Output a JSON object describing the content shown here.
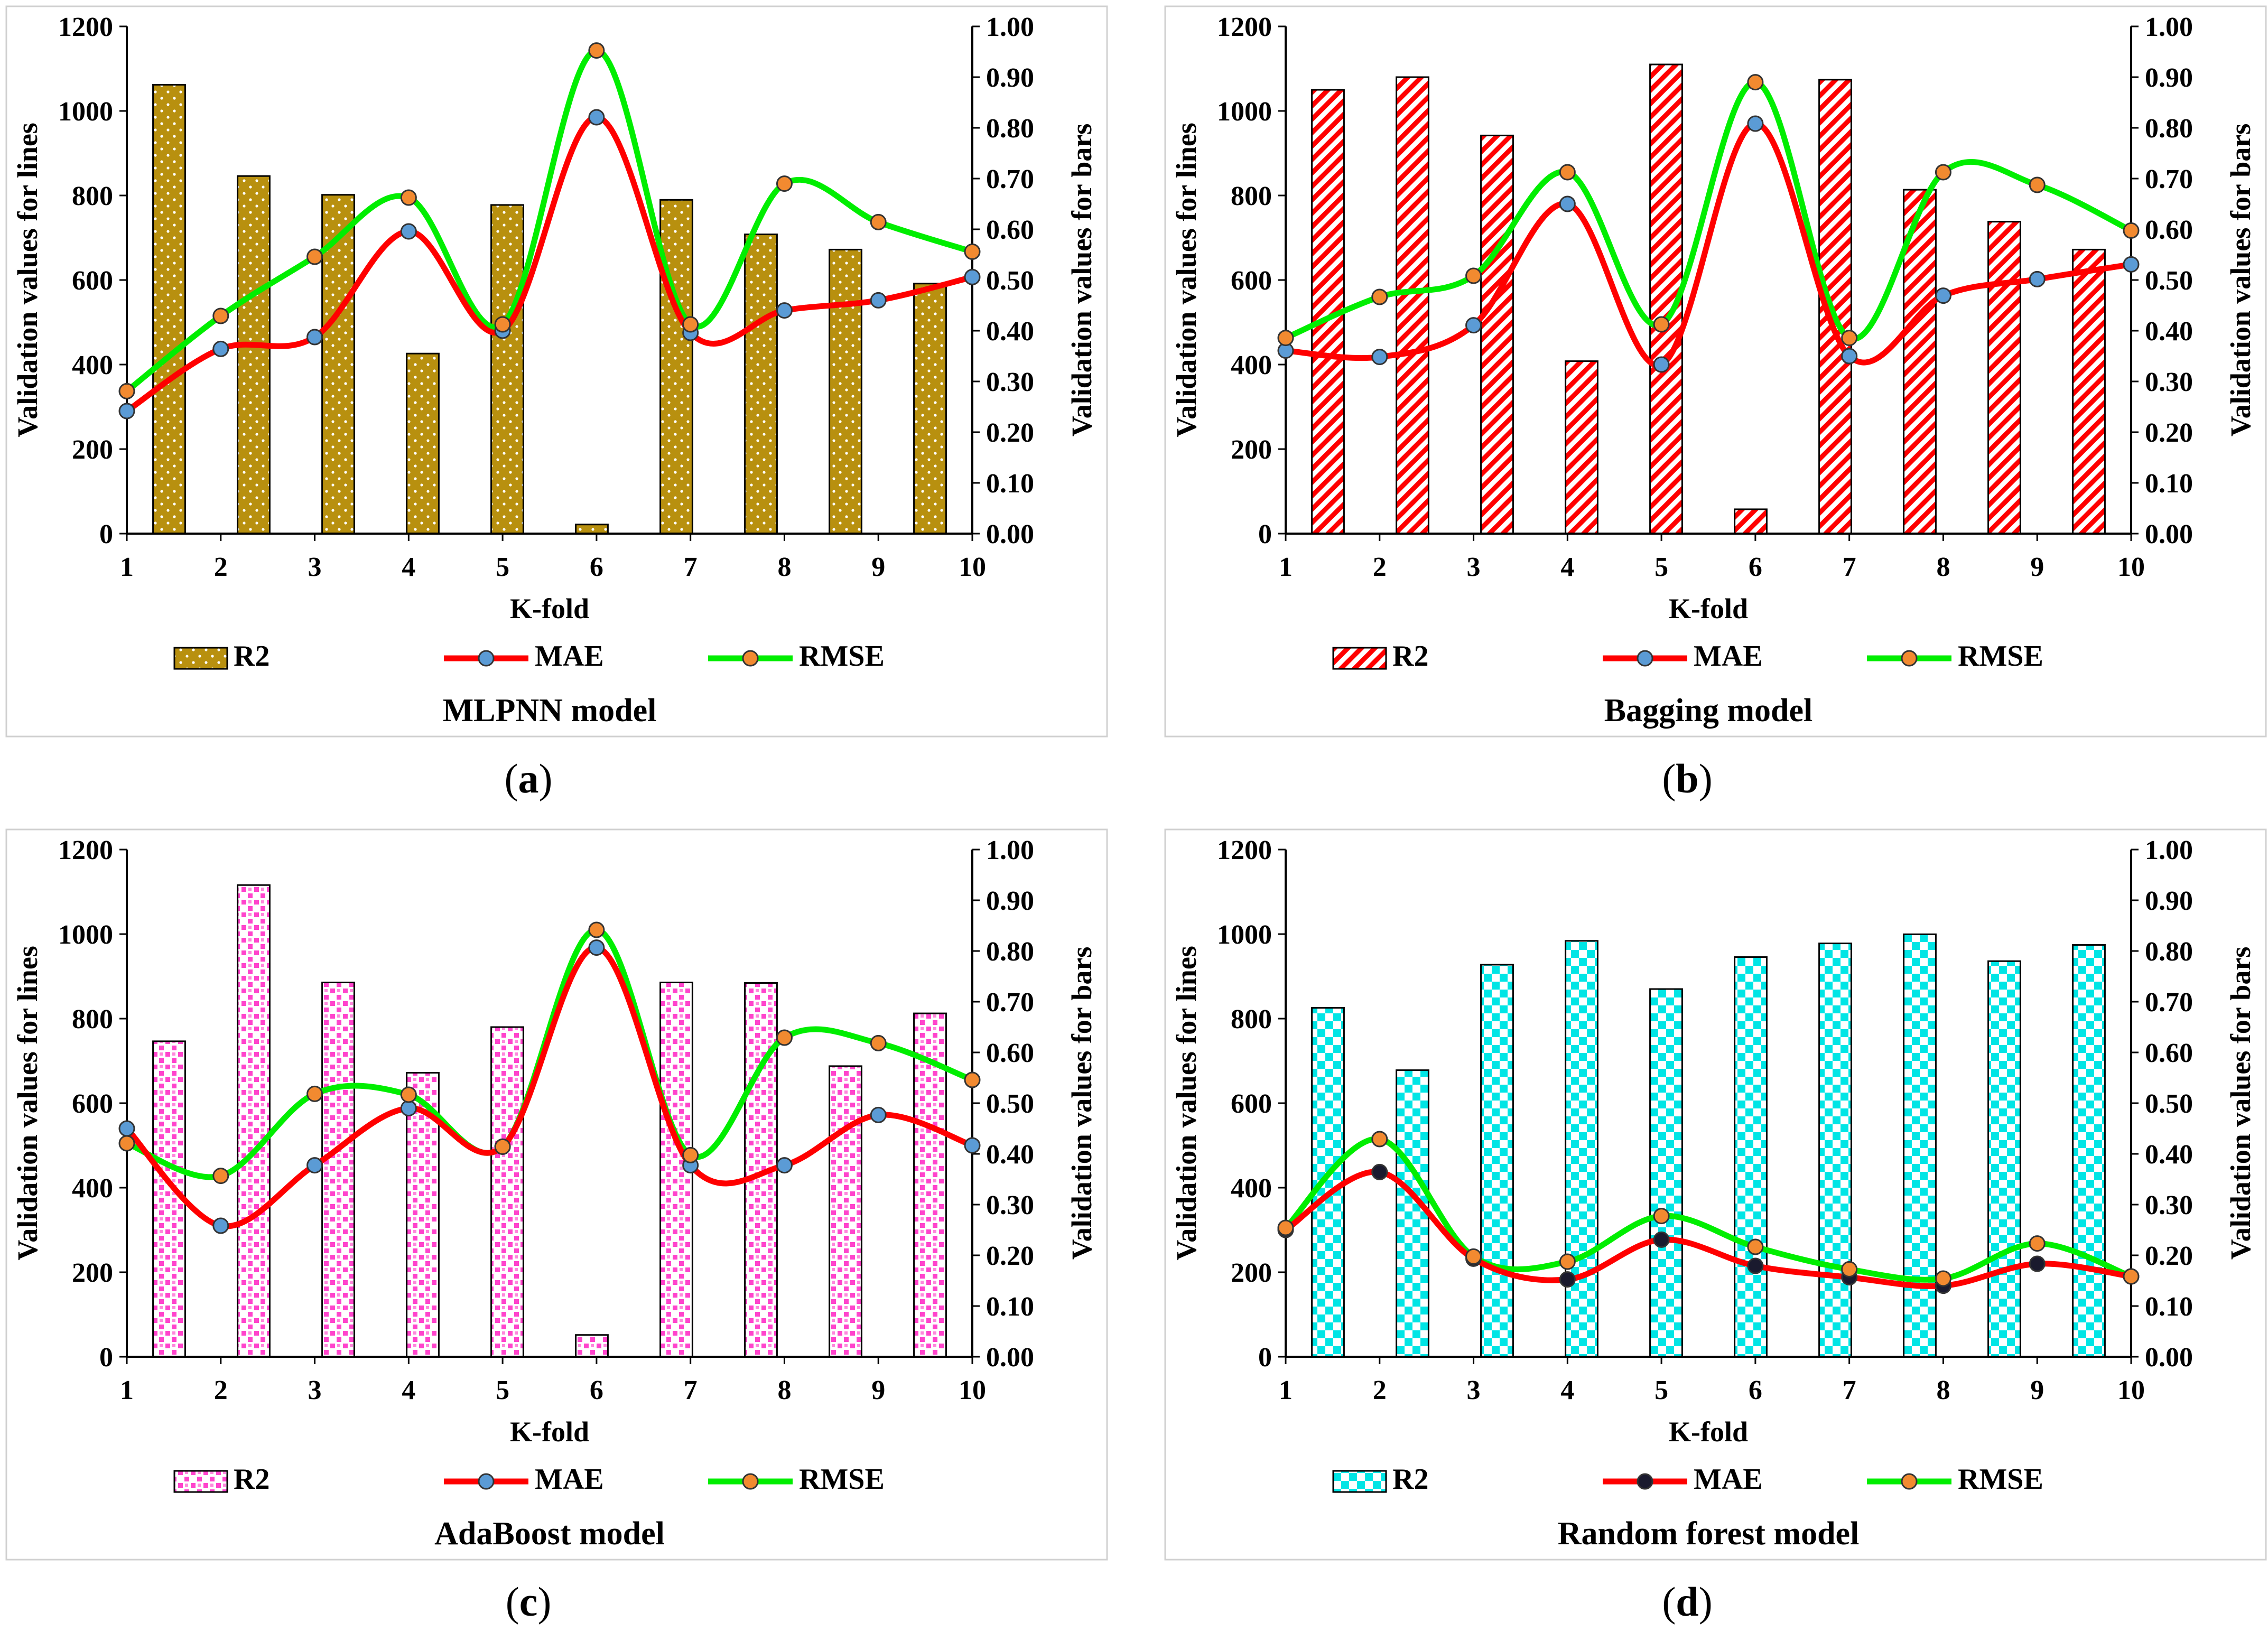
{
  "figure": {
    "panels": [
      {
        "caption_letter": "a",
        "bar_color": "#b8900f",
        "bar_pattern": "dots",
        "mae_marker": "#5b9bd5",
        "chart_data": {
          "type": "bar+line",
          "title": "MLPNN model",
          "xlabel": "K-fold",
          "ylabel_left": "Validation values for lines",
          "ylabel_right": "Validation values for bars",
          "categories": [
            "1",
            "2",
            "3",
            "4",
            "5",
            "6",
            "7",
            "8",
            "9",
            "10"
          ],
          "yticks_left": [
            "0",
            "200",
            "400",
            "600",
            "800",
            "1000",
            "1200"
          ],
          "yticks_right": [
            "0.00",
            "0.10",
            "0.20",
            "0.30",
            "0.40",
            "0.50",
            "0.60",
            "0.70",
            "0.80",
            "0.90",
            "1.00"
          ],
          "ylim_left": [
            0,
            1200
          ],
          "ylim_right": [
            0,
            1.0
          ],
          "legend": [
            "R2",
            "MAE",
            "RMSE"
          ],
          "series": [
            {
              "name": "R2",
              "kind": "bar",
              "axis": "right",
              "values": [
                0.885,
                0.705,
                0.668,
                0.355,
                0.648,
                0.018,
                0.658,
                0.59,
                0.56,
                0.493
              ]
            },
            {
              "name": "MAE",
              "kind": "line",
              "axis": "left",
              "color": "#ff0000",
              "values": [
                290,
                437,
                465,
                715,
                480,
                985,
                475,
                528,
                552,
                607
              ]
            },
            {
              "name": "RMSE",
              "kind": "line",
              "axis": "left",
              "color": "#00ee00",
              "values": [
                337,
                515,
                655,
                795,
                495,
                1143,
                495,
                828,
                737,
                667
              ]
            }
          ]
        }
      },
      {
        "caption_letter": "b",
        "bar_color": "#ff0000",
        "bar_pattern": "diagonal",
        "mae_marker": "#5b9bd5",
        "chart_data": {
          "type": "bar+line",
          "title": "Bagging model",
          "xlabel": "K-fold",
          "ylabel_left": "Validation values for lines",
          "ylabel_right": "Validation values for bars",
          "categories": [
            "1",
            "2",
            "3",
            "4",
            "5",
            "6",
            "7",
            "8",
            "9",
            "10"
          ],
          "yticks_left": [
            "0",
            "200",
            "400",
            "600",
            "800",
            "1000",
            "1200"
          ],
          "yticks_right": [
            "0.00",
            "0.10",
            "0.20",
            "0.30",
            "0.40",
            "0.50",
            "0.60",
            "0.70",
            "0.80",
            "0.90",
            "1.00"
          ],
          "ylim_left": [
            0,
            1200
          ],
          "ylim_right": [
            0,
            1.0
          ],
          "legend": [
            "R2",
            "MAE",
            "RMSE"
          ],
          "series": [
            {
              "name": "R2",
              "kind": "bar",
              "axis": "right",
              "values": [
                0.875,
                0.9,
                0.785,
                0.34,
                0.925,
                0.048,
                0.895,
                0.678,
                0.615,
                0.56
              ]
            },
            {
              "name": "MAE",
              "kind": "line",
              "axis": "left",
              "color": "#ff0000",
              "values": [
                433,
                418,
                493,
                780,
                400,
                970,
                420,
                563,
                602,
                637
              ]
            },
            {
              "name": "RMSE",
              "kind": "line",
              "axis": "left",
              "color": "#00ee00",
              "values": [
                463,
                560,
                610,
                855,
                495,
                1068,
                463,
                855,
                825,
                717
              ]
            }
          ]
        }
      },
      {
        "caption_letter": "c",
        "bar_color": "#ff44cc",
        "bar_pattern": "checker",
        "mae_marker": "#5b9bd5",
        "chart_data": {
          "type": "bar+line",
          "title": "AdaBoost model",
          "xlabel": "K-fold",
          "ylabel_left": "Validation values for lines",
          "ylabel_right": "Validation values for bars",
          "categories": [
            "1",
            "2",
            "3",
            "4",
            "5",
            "6",
            "7",
            "8",
            "9",
            "10"
          ],
          "yticks_left": [
            "0",
            "200",
            "400",
            "600",
            "800",
            "1000",
            "1200"
          ],
          "yticks_right": [
            "0.00",
            "0.10",
            "0.20",
            "0.30",
            "0.40",
            "0.50",
            "0.60",
            "0.70",
            "0.80",
            "0.90",
            "1.00"
          ],
          "ylim_left": [
            0,
            1200
          ],
          "ylim_right": [
            0,
            1.0
          ],
          "legend": [
            "R2",
            "MAE",
            "RMSE"
          ],
          "series": [
            {
              "name": "R2",
              "kind": "bar",
              "axis": "right",
              "values": [
                0.622,
                0.93,
                0.738,
                0.56,
                0.65,
                0.043,
                0.738,
                0.737,
                0.573,
                0.677
              ]
            },
            {
              "name": "MAE",
              "kind": "line",
              "axis": "left",
              "color": "#ff0000",
              "values": [
                540,
                310,
                453,
                588,
                497,
                968,
                453,
                453,
                572,
                500
              ]
            },
            {
              "name": "RMSE",
              "kind": "line",
              "axis": "left",
              "color": "#00ee00",
              "values": [
                505,
                428,
                622,
                620,
                497,
                1010,
                477,
                755,
                742,
                655
              ]
            }
          ]
        }
      },
      {
        "caption_letter": "d",
        "bar_color": "#00e5e5",
        "bar_pattern": "checker",
        "mae_marker": "#1a1a2e",
        "chart_data": {
          "type": "bar+line",
          "title": "Random forest model",
          "xlabel": "K-fold",
          "ylabel_left": "Validation values for lines",
          "ylabel_right": "Validation values for bars",
          "categories": [
            "1",
            "2",
            "3",
            "4",
            "5",
            "6",
            "7",
            "8",
            "9",
            "10"
          ],
          "yticks_left": [
            "0",
            "200",
            "400",
            "600",
            "800",
            "1000",
            "1200"
          ],
          "yticks_right": [
            "0.00",
            "0.10",
            "0.20",
            "0.30",
            "0.40",
            "0.50",
            "0.60",
            "0.70",
            "0.80",
            "0.90",
            "1.00"
          ],
          "ylim_left": [
            0,
            1200
          ],
          "ylim_right": [
            0,
            1.0
          ],
          "legend": [
            "R2",
            "MAE",
            "RMSE"
          ],
          "series": [
            {
              "name": "R2",
              "kind": "bar",
              "axis": "right",
              "values": [
                0.688,
                0.565,
                0.773,
                0.82,
                0.725,
                0.788,
                0.815,
                0.833,
                0.78,
                0.812
              ]
            },
            {
              "name": "MAE",
              "kind": "line",
              "axis": "left",
              "color": "#ff0000",
              "values": [
                300,
                437,
                232,
                183,
                277,
                215,
                188,
                168,
                220,
                190
              ]
            },
            {
              "name": "RMSE",
              "kind": "line",
              "axis": "left",
              "color": "#00ee00",
              "values": [
                305,
                515,
                237,
                225,
                333,
                260,
                207,
                185,
                268,
                190
              ]
            }
          ]
        }
      }
    ]
  }
}
